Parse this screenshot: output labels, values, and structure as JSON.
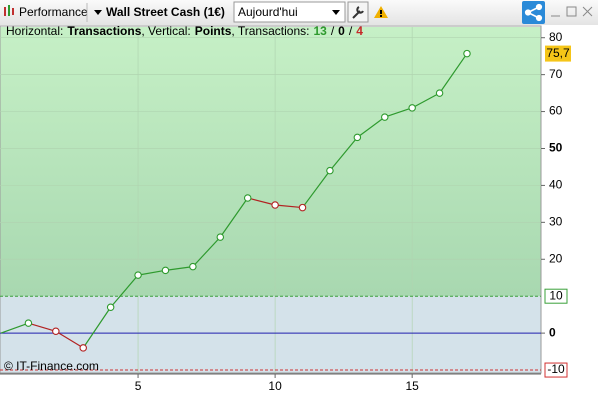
{
  "toolbar": {
    "performance": "Performance",
    "instrument": "Wall Street Cash (1€)",
    "period": "Aujourd'hui"
  },
  "chart_data": {
    "type": "line",
    "info": {
      "x_prefix": "Horizontal:",
      "xlabel": "Transactions",
      "y_prefix": ", Vertical:",
      "ylabel": "Points",
      "stats_prefix": ", Transactions:",
      "separator": "/",
      "stats": [
        {
          "value": 13,
          "color": "#2e9a2e"
        },
        {
          "value": 0,
          "color": "#000000"
        },
        {
          "value": 4,
          "color": "#c62828"
        }
      ]
    },
    "watermark": "© IT-Finance.com",
    "x": [
      0,
      1,
      2,
      3,
      4,
      5,
      6,
      7,
      8,
      9,
      10,
      11,
      12,
      13,
      14,
      15,
      16,
      17
    ],
    "values": [
      0,
      2.7,
      0.5,
      -4,
      7,
      15.7,
      17,
      18,
      26,
      36.6,
      34.7,
      34,
      44,
      53,
      58.5,
      61,
      65,
      75.7
    ],
    "up_color": "#2e9a2e",
    "down_color": "#b22222",
    "last_value": {
      "value": 75.7,
      "label": "75,7"
    },
    "xlim": [
      0,
      19.7
    ],
    "ylim": [
      -10.8,
      82.9
    ],
    "xticks": [
      5,
      10,
      15
    ],
    "yticks": [
      0,
      20,
      30,
      40,
      50,
      60,
      70,
      80
    ],
    "zero_line_color": "#2020b0",
    "levels": [
      {
        "value": 10,
        "color": "#3aa03a"
      },
      {
        "value": -10,
        "color": "#d03030"
      }
    ],
    "grid": true
  }
}
